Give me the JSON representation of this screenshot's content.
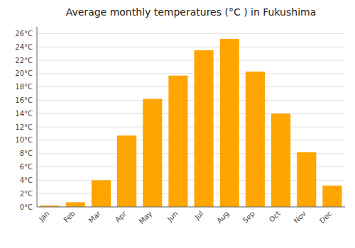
{
  "chart_data": {
    "type": "bar",
    "title": "Average monthly temperatures (°C ) in Fukushima",
    "categories": [
      "Jan",
      "Feb",
      "Mar",
      "Apr",
      "May",
      "Jun",
      "Jul",
      "Aug",
      "Sep",
      "Oct",
      "Nov",
      "Dec"
    ],
    "values": [
      0.2,
      0.7,
      4.0,
      10.7,
      16.2,
      19.7,
      23.5,
      25.2,
      20.3,
      14.0,
      8.2,
      3.2
    ],
    "color": "#FFA500",
    "ylim": [
      0,
      27
    ],
    "yticks": [
      {
        "value": 0,
        "label": "0°C"
      },
      {
        "value": 2,
        "label": "2°C"
      },
      {
        "value": 4,
        "label": "4°C"
      },
      {
        "value": 6,
        "label": "6°C"
      },
      {
        "value": 8,
        "label": "8°C"
      },
      {
        "value": 10,
        "label": "10°C"
      },
      {
        "value": 12,
        "label": "12°C"
      },
      {
        "value": 14,
        "label": "14°C"
      },
      {
        "value": 16,
        "label": "16°C"
      },
      {
        "value": 18,
        "label": "18°C"
      },
      {
        "value": 20,
        "label": "20°C"
      },
      {
        "value": 22,
        "label": "22°C"
      },
      {
        "value": 24,
        "label": "24°C"
      },
      {
        "value": 26,
        "label": "26°C"
      }
    ],
    "grid": true
  }
}
